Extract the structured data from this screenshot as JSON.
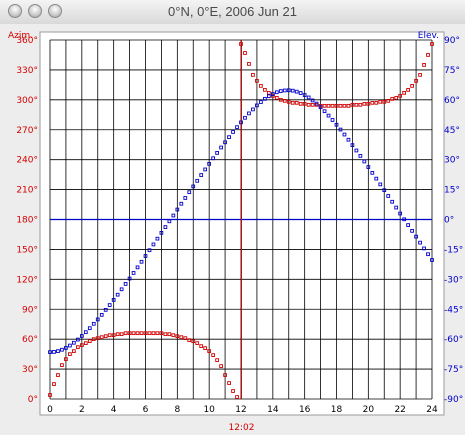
{
  "window": {
    "title": "0°N, 0°E, 2006 Jun 21"
  },
  "colors": {
    "azimuth": "#d40000",
    "elevation": "#0000cc",
    "grid": "#000000",
    "frame": "#9a9a9a",
    "now": "#d40000"
  },
  "chart_data": {
    "type": "scatter",
    "left_axis_label": "Azim.",
    "right_axis_label": "Elev.",
    "x_ticks": [
      "0",
      "2",
      "4",
      "6",
      "8",
      "10",
      "12",
      "14",
      "16",
      "18",
      "20",
      "22",
      "24"
    ],
    "left_ticks": [
      "0°",
      "30°",
      "60°",
      "90°",
      "120°",
      "150°",
      "180°",
      "210°",
      "240°",
      "270°",
      "300°",
      "330°",
      "360°"
    ],
    "right_ticks": [
      "-90°",
      "-75°",
      "-60°",
      "-45°",
      "-30°",
      "-15°",
      "0°",
      "15°",
      "30°",
      "45°",
      "60°",
      "75°",
      "90°"
    ],
    "xlim": [
      0,
      24
    ],
    "azimuth_ylim": [
      0,
      360
    ],
    "elevation_ylim": [
      -90,
      90
    ],
    "now_time": "12:02",
    "now_hour": 12.03,
    "horizon_elevation": 0,
    "series": [
      {
        "name": "Azim.",
        "key": "azimuth",
        "color": "#d40000",
        "x": [
          0,
          0.25,
          0.5,
          0.75,
          1,
          1.25,
          1.5,
          1.75,
          2,
          2.25,
          2.5,
          2.75,
          3,
          3.25,
          3.5,
          3.75,
          4,
          4.25,
          4.5,
          4.75,
          5,
          5.25,
          5.5,
          5.75,
          6,
          6.25,
          6.5,
          6.75,
          7,
          7.25,
          7.5,
          7.75,
          8,
          8.25,
          8.5,
          8.75,
          9,
          9.25,
          9.5,
          9.75,
          10,
          10.25,
          10.5,
          10.75,
          11,
          11.25,
          11.5,
          11.75,
          12,
          12.25,
          12.5,
          12.75,
          13,
          13.25,
          13.5,
          13.75,
          14,
          14.25,
          14.5,
          14.75,
          15,
          15.25,
          15.5,
          15.75,
          16,
          16.25,
          16.5,
          16.75,
          17,
          17.25,
          17.5,
          17.75,
          18,
          18.25,
          18.5,
          18.75,
          19,
          19.25,
          19.5,
          19.75,
          20,
          20.25,
          20.5,
          20.75,
          21,
          21.25,
          21.5,
          21.75,
          22,
          22.25,
          22.5,
          22.75,
          23,
          23.25,
          23.5,
          23.75,
          24
        ],
        "y": [
          4,
          15,
          24,
          34,
          40,
          45,
          48,
          52,
          54,
          56,
          58,
          60,
          61,
          62,
          63,
          64,
          64,
          65,
          65,
          66,
          66,
          66,
          66,
          66,
          66,
          66,
          66,
          66,
          66,
          65,
          65,
          64,
          63,
          62,
          61,
          59,
          58,
          56,
          53,
          51,
          48,
          44,
          39,
          33,
          24,
          16,
          8,
          2,
          356,
          347,
          336,
          325,
          319,
          314,
          310,
          307,
          304,
          302,
          300,
          299,
          298,
          297,
          297,
          296,
          296,
          295,
          295,
          295,
          294,
          294,
          294,
          294,
          294,
          294,
          294,
          294,
          295,
          295,
          295,
          296,
          296,
          297,
          297,
          298,
          298,
          299,
          301,
          302,
          304,
          307,
          310,
          314,
          319,
          325,
          335,
          345,
          356
        ]
      },
      {
        "name": "Elev.",
        "key": "elevation",
        "color": "#0000cc",
        "x": [
          0,
          0.25,
          0.5,
          0.75,
          1,
          1.25,
          1.5,
          1.75,
          2,
          2.25,
          2.5,
          2.75,
          3,
          3.25,
          3.5,
          3.75,
          4,
          4.25,
          4.5,
          4.75,
          5,
          5.25,
          5.5,
          5.75,
          6,
          6.25,
          6.5,
          6.75,
          7,
          7.25,
          7.5,
          7.75,
          8,
          8.25,
          8.5,
          8.75,
          9,
          9.25,
          9.5,
          9.75,
          10,
          10.25,
          10.5,
          10.75,
          11,
          11.25,
          11.5,
          11.75,
          12,
          12.25,
          12.5,
          12.75,
          13,
          13.25,
          13.5,
          13.75,
          14,
          14.25,
          14.5,
          14.75,
          15,
          15.25,
          15.5,
          15.75,
          16,
          16.25,
          16.5,
          16.75,
          17,
          17.25,
          17.5,
          17.75,
          18,
          18.25,
          18.5,
          18.75,
          19,
          19.25,
          19.5,
          19.75,
          20,
          20.25,
          20.5,
          20.75,
          21,
          21.25,
          21.5,
          21.75,
          22,
          22.25,
          22.5,
          22.75,
          23,
          23.25,
          23.5,
          23.75,
          24
        ],
        "y": [
          -66.5,
          -66.4,
          -66,
          -65.3,
          -64.4,
          -63.2,
          -61.8,
          -60.2,
          -58.4,
          -56.5,
          -54.5,
          -52.3,
          -50.1,
          -47.8,
          -45.3,
          -42.9,
          -40.3,
          -37.7,
          -35,
          -32.3,
          -29.6,
          -26.8,
          -24,
          -21.2,
          -18.3,
          -15.4,
          -12.5,
          -9.6,
          -6.7,
          -3.8,
          -0.9,
          2,
          5,
          7.9,
          10.8,
          13.7,
          16.6,
          19.4,
          22.3,
          25.1,
          27.9,
          30.7,
          33.4,
          36.1,
          38.7,
          41.3,
          43.9,
          46.3,
          48.7,
          51,
          53.2,
          55.2,
          57.2,
          58.9,
          60.5,
          61.8,
          62.9,
          63.8,
          64.4,
          64.7,
          64.8,
          64.6,
          64.1,
          63.4,
          62.4,
          61.2,
          59.7,
          58.1,
          56.3,
          54.3,
          52.1,
          49.9,
          47.5,
          45.1,
          42.6,
          40,
          37.3,
          34.6,
          31.9,
          29.1,
          26.3,
          23.4,
          20.5,
          17.6,
          14.7,
          11.8,
          8.9,
          6,
          3,
          0.1,
          -2.8,
          -5.7,
          -8.6,
          -11.6,
          -14.5,
          -17.4,
          -20.3
        ]
      }
    ]
  }
}
